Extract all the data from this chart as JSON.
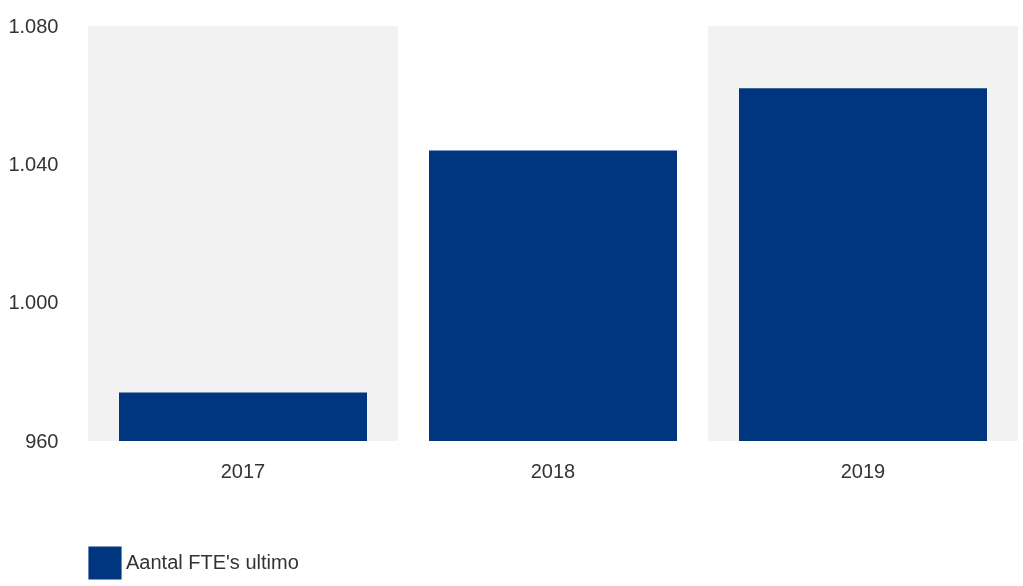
{
  "chart_data": {
    "type": "bar",
    "categories": [
      "2017",
      "2018",
      "2019"
    ],
    "series": [
      {
        "name": "Aantal FTE's ultimo",
        "color": "#003580",
        "values": [
          974,
          1044,
          1062
        ]
      }
    ],
    "ylim": [
      960,
      1080
    ],
    "yticks": [
      {
        "value": 960,
        "label": "960"
      },
      {
        "value": 1000,
        "label": "1.000"
      },
      {
        "value": 1040,
        "label": "1.040"
      },
      {
        "value": 1080,
        "label": "1.080"
      }
    ],
    "bands": [
      {
        "axis": "x",
        "from": "2017",
        "to": "2017",
        "color": "#f2f2f2"
      },
      {
        "axis": "x",
        "from": "2019",
        "to": "2019",
        "color": "#f2f2f2"
      }
    ],
    "grid": false,
    "legend": "bottom left"
  }
}
